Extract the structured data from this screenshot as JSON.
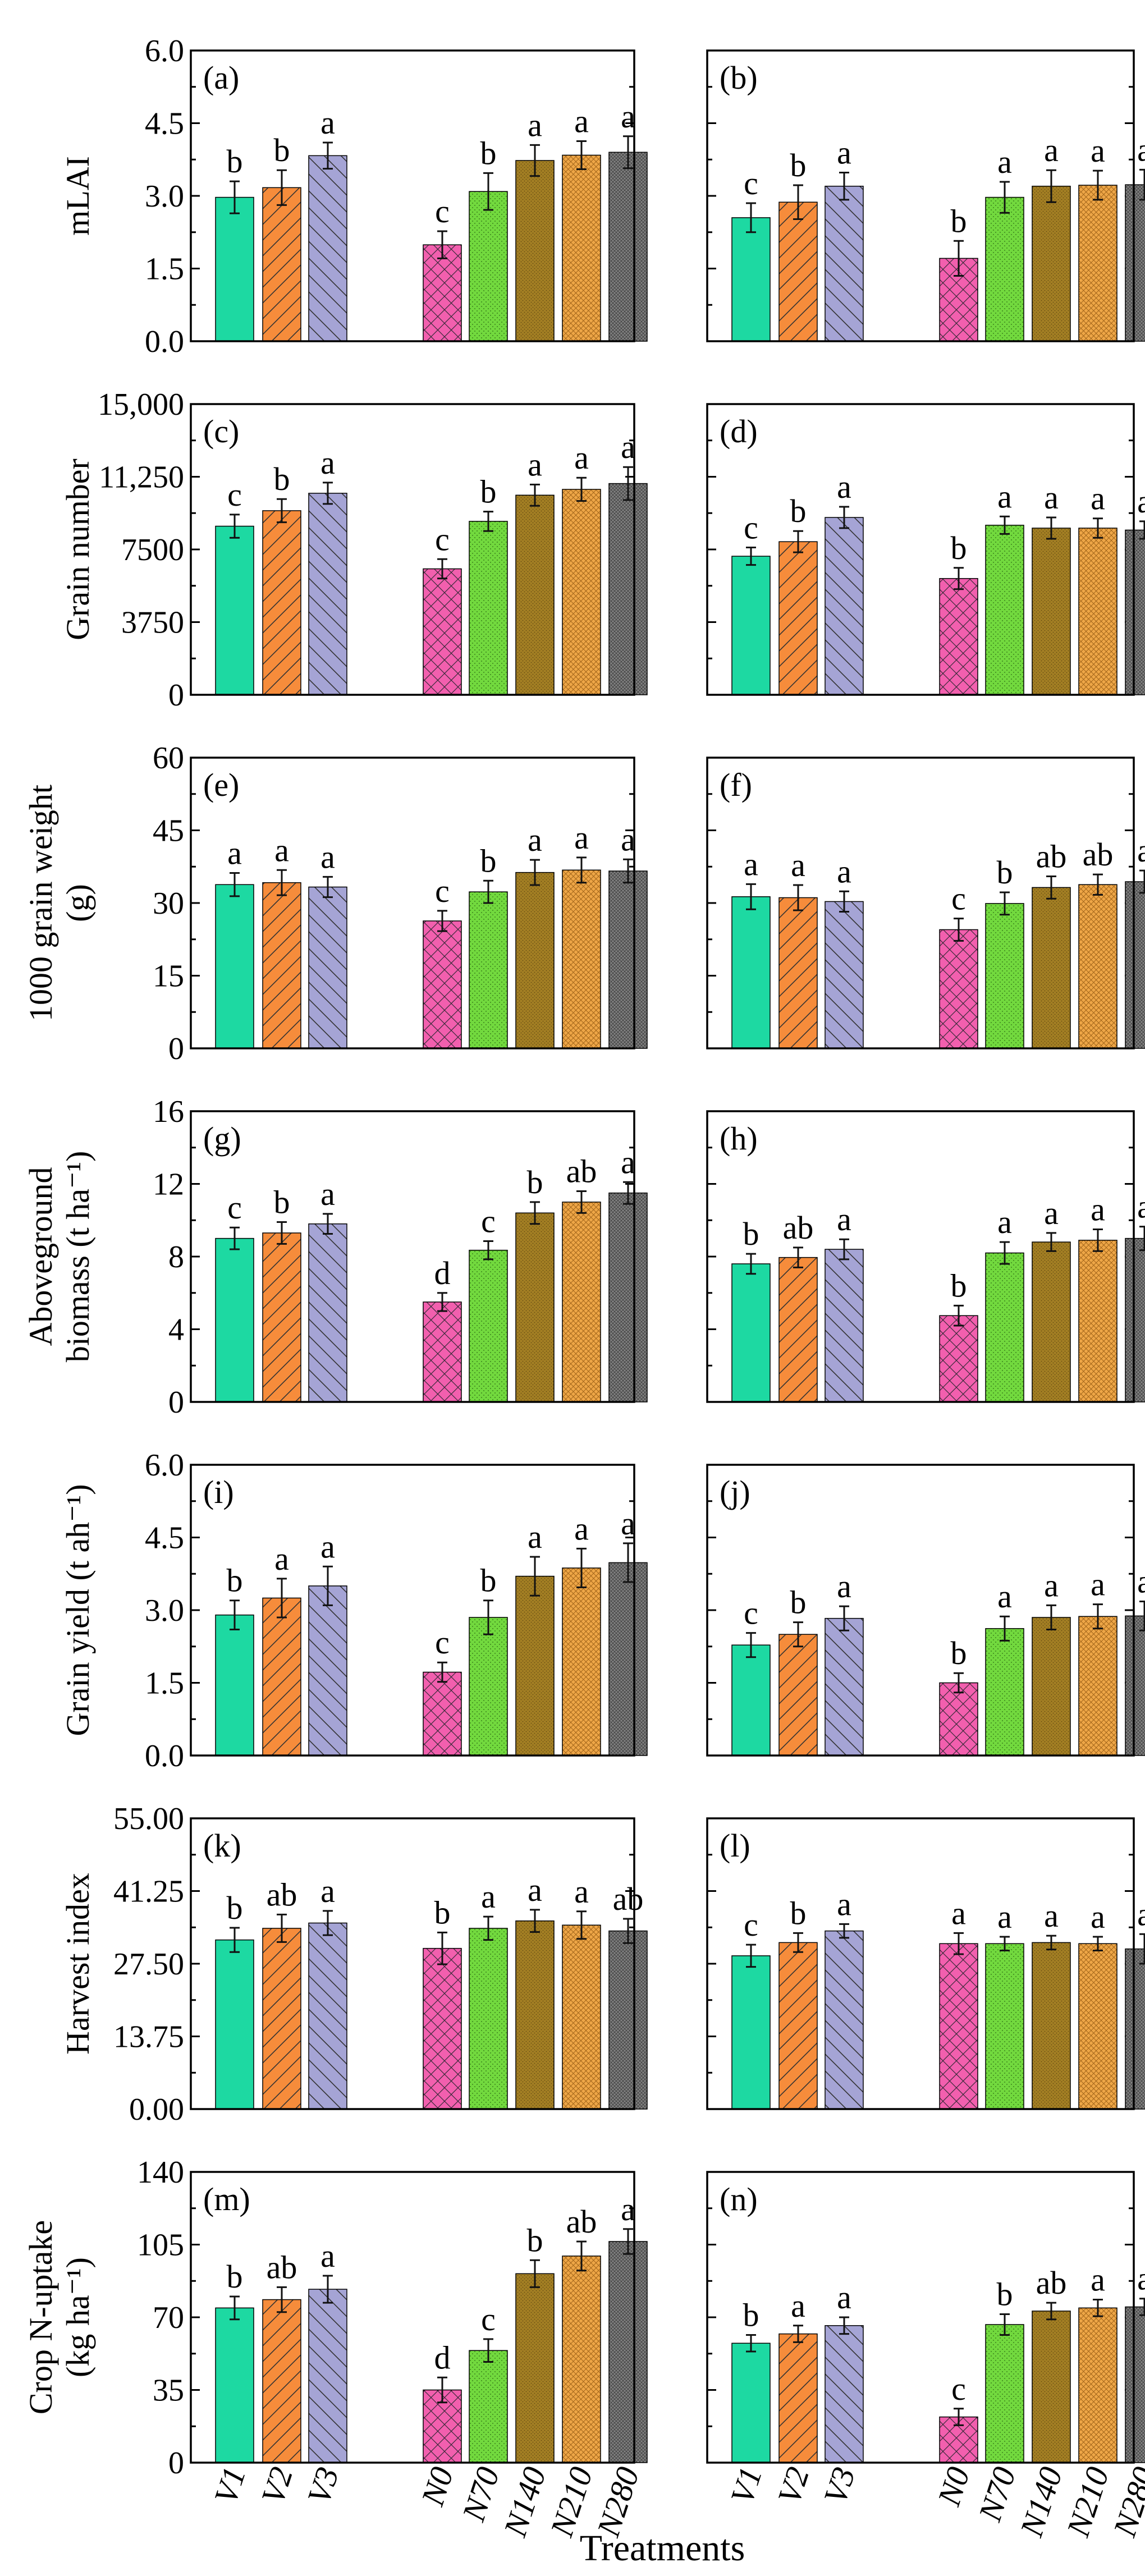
{
  "chart_data": {
    "type": "bar",
    "categories": [
      "V1",
      "V2",
      "V3",
      "N0",
      "N70",
      "N140",
      "N210",
      "N280"
    ],
    "x_title": "Treatments",
    "colors": {
      "V1": "#1dd9a2",
      "V2": "#f68c3b",
      "V3": "#a5a4d5",
      "N0": "#f25fae",
      "N70": "#72d93e",
      "N140": "#a27e23",
      "N210": "#eea647",
      "N280": "#808080"
    },
    "rows": [
      {
        "ylabel": [
          "mLAI"
        ],
        "ylim": [
          0,
          6
        ],
        "ticks": [
          "0.0",
          "1.5",
          "3.0",
          "4.5",
          "6.0"
        ],
        "panels": [
          {
            "label": "(a)",
            "values": [
              2.97,
              3.17,
              3.83,
              1.99,
              3.09,
              3.73,
              3.84,
              3.9
            ],
            "errors": [
              0.33,
              0.36,
              0.27,
              0.28,
              0.38,
              0.32,
              0.29,
              0.33
            ],
            "letters": [
              "b",
              "b",
              "a",
              "c",
              "b",
              "a",
              "a",
              "a"
            ]
          },
          {
            "label": "(b)",
            "values": [
              2.55,
              2.87,
              3.2,
              1.71,
              2.97,
              3.2,
              3.22,
              3.23
            ],
            "errors": [
              0.3,
              0.35,
              0.28,
              0.36,
              0.32,
              0.33,
              0.3,
              0.31
            ],
            "letters": [
              "c",
              "b",
              "a",
              "b",
              "a",
              "a",
              "a",
              "a"
            ]
          }
        ]
      },
      {
        "ylabel": [
          "Grain number"
        ],
        "ylim": [
          0,
          15000
        ],
        "ticks": [
          "0",
          "3750",
          "7500",
          "11,250",
          "15,000"
        ],
        "panels": [
          {
            "label": "(c)",
            "values": [
              8700,
              9500,
              10400,
              6500,
              8950,
              10300,
              10600,
              10900
            ],
            "errors": [
              600,
              600,
              550,
              500,
              500,
              550,
              600,
              850
            ],
            "letters": [
              "c",
              "b",
              "a",
              "c",
              "b",
              "a",
              "a",
              "a"
            ]
          },
          {
            "label": "(d)",
            "values": [
              7150,
              7900,
              9150,
              6000,
              8750,
              8600,
              8600,
              8500
            ],
            "errors": [
              450,
              550,
              550,
              550,
              450,
              550,
              500,
              450
            ],
            "letters": [
              "c",
              "b",
              "a",
              "b",
              "a",
              "a",
              "a",
              "a"
            ]
          }
        ]
      },
      {
        "ylabel": [
          "1000 grain weight",
          "(g)"
        ],
        "ylim": [
          0,
          60
        ],
        "ticks": [
          "0",
          "15",
          "30",
          "45",
          "60"
        ],
        "panels": [
          {
            "label": "(e)",
            "values": [
              33.8,
              34.2,
              33.3,
              26.3,
              32.3,
              36.3,
              36.8,
              36.6
            ],
            "errors": [
              2.4,
              2.6,
              2.1,
              2.1,
              2.3,
              2.6,
              2.6,
              2.4
            ],
            "letters": [
              "a",
              "a",
              "a",
              "c",
              "b",
              "a",
              "a",
              "a"
            ]
          },
          {
            "label": "(f)",
            "values": [
              31.3,
              31.1,
              30.3,
              24.5,
              29.9,
              33.2,
              33.8,
              34.4
            ],
            "errors": [
              2.6,
              2.6,
              2.1,
              2.3,
              2.3,
              2.3,
              2.1,
              2.3
            ],
            "letters": [
              "a",
              "a",
              "a",
              "c",
              "b",
              "ab",
              "ab",
              "a"
            ]
          }
        ]
      },
      {
        "ylabel": [
          "Aboveground",
          "biomass (t ha⁻¹)"
        ],
        "ylim": [
          0,
          16
        ],
        "ticks": [
          "0",
          "4",
          "8",
          "12",
          "16"
        ],
        "panels": [
          {
            "label": "(g)",
            "values": [
              9.0,
              9.3,
              9.8,
              5.5,
              8.35,
              10.4,
              11.0,
              11.5
            ],
            "errors": [
              0.6,
              0.6,
              0.55,
              0.5,
              0.5,
              0.6,
              0.6,
              0.6
            ],
            "letters": [
              "c",
              "b",
              "a",
              "d",
              "c",
              "b",
              "ab",
              "a"
            ]
          },
          {
            "label": "(h)",
            "values": [
              7.6,
              7.95,
              8.4,
              4.75,
              8.2,
              8.8,
              8.9,
              9.0
            ],
            "errors": [
              0.55,
              0.55,
              0.55,
              0.55,
              0.6,
              0.5,
              0.6,
              0.65
            ],
            "letters": [
              "b",
              "ab",
              "a",
              "b",
              "a",
              "a",
              "a",
              "a"
            ]
          }
        ]
      },
      {
        "ylabel": [
          "Grain yield (t ah⁻¹)"
        ],
        "ylim": [
          0,
          6
        ],
        "ticks": [
          "0.0",
          "1.5",
          "3.0",
          "4.5",
          "6.0"
        ],
        "panels": [
          {
            "label": "(i)",
            "values": [
              2.9,
              3.25,
              3.5,
              1.72,
              2.85,
              3.7,
              3.87,
              3.98
            ],
            "errors": [
              0.3,
              0.4,
              0.4,
              0.2,
              0.35,
              0.4,
              0.4,
              0.4
            ],
            "letters": [
              "b",
              "a",
              "a",
              "c",
              "b",
              "a",
              "a",
              "a"
            ]
          },
          {
            "label": "(j)",
            "values": [
              2.28,
              2.5,
              2.83,
              1.5,
              2.62,
              2.85,
              2.87,
              2.88
            ],
            "errors": [
              0.25,
              0.25,
              0.25,
              0.2,
              0.25,
              0.25,
              0.25,
              0.3
            ],
            "letters": [
              "c",
              "b",
              "a",
              "b",
              "a",
              "a",
              "a",
              "a"
            ]
          }
        ]
      },
      {
        "ylabel": [
          "Harvest index"
        ],
        "ylim": [
          0,
          55
        ],
        "ticks": [
          "0.00",
          "13.75",
          "27.50",
          "41.25",
          "55.00"
        ],
        "panels": [
          {
            "label": "(k)",
            "values": [
              32.0,
              34.2,
              35.2,
              30.4,
              34.2,
              35.6,
              34.8,
              33.7
            ],
            "errors": [
              2.3,
              2.6,
              2.3,
              3.0,
              2.2,
              2.1,
              2.6,
              2.3
            ],
            "letters": [
              "b",
              "ab",
              "a",
              "b",
              "a",
              "a",
              "a",
              "ab"
            ]
          },
          {
            "label": "(l)",
            "values": [
              29.0,
              31.5,
              33.7,
              31.3,
              31.3,
              31.5,
              31.3,
              30.3
            ],
            "errors": [
              2.1,
              1.8,
              1.3,
              2.0,
              1.3,
              1.3,
              1.3,
              2.8
            ],
            "letters": [
              "c",
              "b",
              "a",
              "a",
              "a",
              "a",
              "a",
              "a"
            ]
          }
        ]
      },
      {
        "ylabel": [
          "Crop N-uptake",
          "(kg ha⁻¹)"
        ],
        "ylim": [
          0,
          140
        ],
        "ticks": [
          "0",
          "35",
          "70",
          "105",
          "140"
        ],
        "panels": [
          {
            "label": "(m)",
            "values": [
              74.5,
              78.5,
              83.5,
              35.0,
              54.0,
              91.0,
              99.5,
              106.5
            ],
            "errors": [
              5.5,
              6.0,
              6.5,
              6.0,
              5.5,
              6.5,
              7.0,
              6.0
            ],
            "letters": [
              "b",
              "ab",
              "a",
              "d",
              "c",
              "b",
              "ab",
              "a"
            ]
          },
          {
            "label": "(n)",
            "values": [
              57.5,
              62.0,
              66.0,
              22.0,
              66.5,
              73.0,
              74.5,
              75.0
            ],
            "errors": [
              4.0,
              4.0,
              4.0,
              4.0,
              5.0,
              4.0,
              4.0,
              4.0
            ],
            "letters": [
              "b",
              "a",
              "a",
              "c",
              "b",
              "ab",
              "a",
              "a"
            ]
          }
        ]
      }
    ]
  }
}
